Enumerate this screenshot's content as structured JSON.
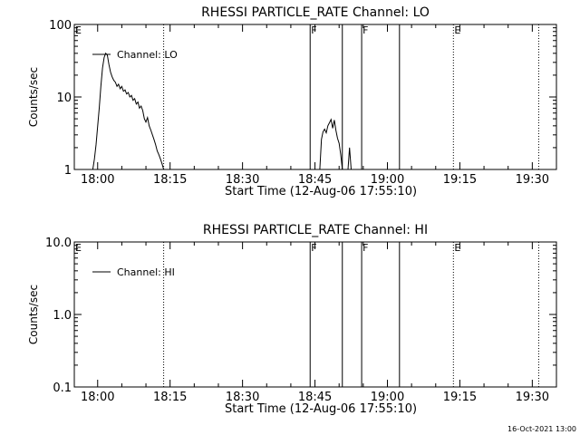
{
  "footer": {
    "timestamp": "16-Oct-2021 13:00"
  },
  "chart_data": [
    {
      "type": "line",
      "title": "RHESSI PARTICLE_RATE Channel: LO",
      "xlabel": "Start Time (12-Aug-06 17:55:10)",
      "ylabel": "Counts/sec",
      "y_scale": "log",
      "ylim": [
        1,
        100
      ],
      "xlim": [
        "17:55:10",
        "19:35:00"
      ],
      "x_ticks": [
        "18:00",
        "18:15",
        "18:30",
        "18:45",
        "19:00",
        "19:15",
        "19:30"
      ],
      "y_ticks": [
        "1",
        "10",
        "100"
      ],
      "legend": {
        "placement": "top-left",
        "entries": [
          "Channel: LO"
        ]
      },
      "event_markers": [
        {
          "time": "17:55:10",
          "label": "E",
          "style": "solid"
        },
        {
          "time": "18:13:40",
          "label": "",
          "style": "dotted"
        },
        {
          "time": "18:44:00",
          "label": "F",
          "style": "solid"
        },
        {
          "time": "18:50:40",
          "label": "",
          "style": "solid"
        },
        {
          "time": "18:54:40",
          "label": "F",
          "style": "solid"
        },
        {
          "time": "19:02:30",
          "label": "",
          "style": "solid"
        },
        {
          "time": "19:13:40",
          "label": "E",
          "style": "dotted"
        },
        {
          "time": "19:31:20",
          "label": "",
          "style": "dotted"
        }
      ],
      "series": [
        {
          "name": "Channel: LO",
          "segments": [
            [
              [
                "17:59:00",
                1
              ],
              [
                "17:59:20",
                1.4
              ],
              [
                "17:59:40",
                2.2
              ],
              [
                "18:00:00",
                4
              ],
              [
                "18:00:20",
                7
              ],
              [
                "18:00:40",
                14
              ],
              [
                "18:01:00",
                25
              ],
              [
                "18:01:20",
                35
              ],
              [
                "18:01:40",
                40
              ],
              [
                "18:02:00",
                38
              ],
              [
                "18:02:20",
                28
              ],
              [
                "18:02:40",
                22
              ],
              [
                "18:03:00",
                19
              ],
              [
                "18:03:20",
                17
              ],
              [
                "18:03:40",
                16
              ],
              [
                "18:04:00",
                14
              ],
              [
                "18:04:20",
                15
              ],
              [
                "18:04:40",
                13
              ],
              [
                "18:05:00",
                14
              ],
              [
                "18:05:20",
                12
              ],
              [
                "18:05:40",
                12.5
              ],
              [
                "18:06:00",
                11
              ],
              [
                "18:06:20",
                11.5
              ],
              [
                "18:06:40",
                10
              ],
              [
                "18:07:00",
                10.5
              ],
              [
                "18:07:20",
                9
              ],
              [
                "18:07:40",
                9.5
              ],
              [
                "18:08:00",
                8
              ],
              [
                "18:08:20",
                8.5
              ],
              [
                "18:08:40",
                7
              ],
              [
                "18:09:00",
                7.5
              ],
              [
                "18:09:20",
                6.5
              ],
              [
                "18:09:40",
                5
              ],
              [
                "18:10:00",
                4.5
              ],
              [
                "18:10:20",
                5.2
              ],
              [
                "18:10:40",
                4
              ],
              [
                "18:11:00",
                3.5
              ],
              [
                "18:11:20",
                3
              ],
              [
                "18:11:40",
                2.6
              ],
              [
                "18:12:00",
                2.2
              ],
              [
                "18:12:20",
                1.8
              ],
              [
                "18:12:40",
                1.6
              ],
              [
                "18:13:00",
                1.4
              ],
              [
                "18:13:20",
                1.2
              ],
              [
                "18:13:40",
                1
              ]
            ],
            [
              [
                "18:46:00",
                1
              ],
              [
                "18:46:20",
                2.6
              ],
              [
                "18:46:40",
                3.3
              ],
              [
                "18:47:00",
                3.6
              ],
              [
                "18:47:20",
                3.2
              ],
              [
                "18:47:40",
                4
              ],
              [
                "18:48:00",
                4.4
              ],
              [
                "18:48:20",
                4.9
              ],
              [
                "18:48:40",
                3.7
              ],
              [
                "18:49:00",
                4.8
              ],
              [
                "18:49:20",
                3.5
              ],
              [
                "18:49:40",
                2.7
              ],
              [
                "18:50:00",
                2.3
              ],
              [
                "18:50:20",
                1.6
              ],
              [
                "18:50:40",
                1
              ]
            ],
            [
              [
                "18:51:50",
                1
              ],
              [
                "18:52:10",
                2
              ],
              [
                "18:52:30",
                1
              ]
            ]
          ]
        }
      ]
    },
    {
      "type": "line",
      "title": "RHESSI PARTICLE_RATE Channel: HI",
      "xlabel": "Start Time (12-Aug-06 17:55:10)",
      "ylabel": "Counts/sec",
      "y_scale": "log",
      "ylim": [
        0.1,
        10
      ],
      "xlim": [
        "17:55:10",
        "19:35:00"
      ],
      "x_ticks": [
        "18:00",
        "18:15",
        "18:30",
        "18:45",
        "19:00",
        "19:15",
        "19:30"
      ],
      "y_ticks": [
        "0.1",
        "1.0",
        "10.0"
      ],
      "legend": {
        "placement": "top-left",
        "entries": [
          "Channel: HI"
        ]
      },
      "event_markers": [
        {
          "time": "17:55:10",
          "label": "E",
          "style": "solid"
        },
        {
          "time": "18:13:40",
          "label": "",
          "style": "dotted"
        },
        {
          "time": "18:44:00",
          "label": "F",
          "style": "solid"
        },
        {
          "time": "18:50:40",
          "label": "",
          "style": "solid"
        },
        {
          "time": "18:54:40",
          "label": "F",
          "style": "solid"
        },
        {
          "time": "19:02:30",
          "label": "",
          "style": "solid"
        },
        {
          "time": "19:13:40",
          "label": "E",
          "style": "dotted"
        },
        {
          "time": "19:31:20",
          "label": "",
          "style": "dotted"
        }
      ],
      "series": [
        {
          "name": "Channel: HI",
          "segments": []
        }
      ]
    }
  ]
}
